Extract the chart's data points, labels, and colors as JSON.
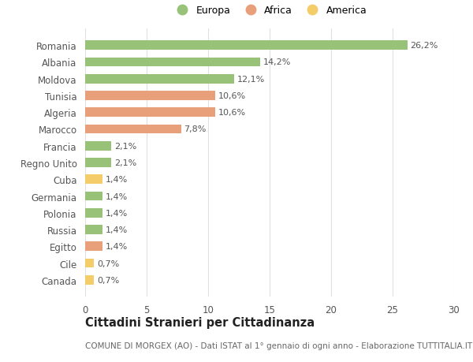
{
  "categories": [
    "Canada",
    "Cile",
    "Egitto",
    "Russia",
    "Polonia",
    "Germania",
    "Cuba",
    "Regno Unito",
    "Francia",
    "Marocco",
    "Algeria",
    "Tunisia",
    "Moldova",
    "Albania",
    "Romania"
  ],
  "values": [
    0.7,
    0.7,
    1.4,
    1.4,
    1.4,
    1.4,
    1.4,
    2.1,
    2.1,
    7.8,
    10.6,
    10.6,
    12.1,
    14.2,
    26.2
  ],
  "colors": [
    "#f5cc6a",
    "#f5cc6a",
    "#e8a07a",
    "#97c278",
    "#97c278",
    "#97c278",
    "#f5cc6a",
    "#97c278",
    "#97c278",
    "#e8a07a",
    "#e8a07a",
    "#e8a07a",
    "#97c278",
    "#97c278",
    "#97c278"
  ],
  "labels": [
    "0,7%",
    "0,7%",
    "1,4%",
    "1,4%",
    "1,4%",
    "1,4%",
    "1,4%",
    "2,1%",
    "2,1%",
    "7,8%",
    "10,6%",
    "10,6%",
    "12,1%",
    "14,2%",
    "26,2%"
  ],
  "legend": [
    {
      "label": "Europa",
      "color": "#97c278"
    },
    {
      "label": "Africa",
      "color": "#e8a07a"
    },
    {
      "label": "America",
      "color": "#f5cc6a"
    }
  ],
  "title": "Cittadini Stranieri per Cittadinanza",
  "subtitle": "COMUNE DI MORGEX (AO) - Dati ISTAT al 1° gennaio di ogni anno - Elaborazione TUTTITALIA.IT",
  "xlim": [
    0,
    30
  ],
  "xticks": [
    0,
    5,
    10,
    15,
    20,
    25,
    30
  ],
  "bg_color": "#ffffff",
  "grid_color": "#e0e0e0",
  "bar_height": 0.55,
  "label_fontsize": 8.0,
  "tick_fontsize": 8.5,
  "legend_fontsize": 9.0,
  "title_fontsize": 10.5,
  "subtitle_fontsize": 7.5
}
